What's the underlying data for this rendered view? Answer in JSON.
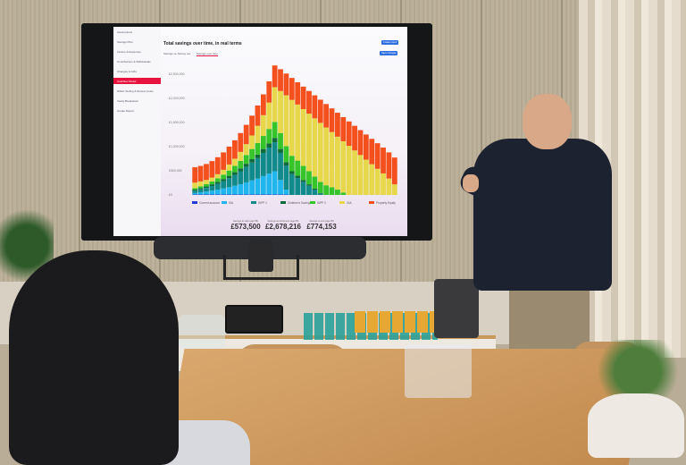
{
  "app": {
    "sidebar": {
      "items": [
        "Assumptions",
        "Savings Plan",
        "Income & Expenses",
        "Contributions & Withdrawals",
        "Changes & Gifts",
        "Cashflow Model",
        "Which Tooling & Review Costs",
        "Yearly Breakdown",
        "Create Report"
      ],
      "active_index": 5
    },
    "title": "Total savings over time, in real terms",
    "tabs": [
      "Savings vs. Money out",
      "Savings over time"
    ],
    "buttons": {
      "top": "Create report",
      "chart": "Save changes"
    },
    "stats": [
      {
        "label": "Savings at start (age 55)",
        "value": "£573,500"
      },
      {
        "label": "Savings at retirement (age 65)",
        "value": "£2,678,216"
      },
      {
        "label": "Savings at end (age 95)",
        "value": "£774,153"
      }
    ]
  },
  "colors": {
    "accent": "#e8123f",
    "button": "#2e6fe0"
  },
  "chart_data": {
    "type": "bar",
    "stacked": true,
    "title": "Total savings over time, in real terms",
    "ylim": [
      0,
      2700000
    ],
    "yticks": [
      "£0",
      "£500,000",
      "£1,000,000",
      "£1,500,000",
      "£2,000,000",
      "£2,500,000"
    ],
    "ytick_values": [
      0,
      500000,
      1000000,
      1500000,
      2000000,
      2500000
    ],
    "unit": "£ thousands",
    "legend": "bottom",
    "series": [
      {
        "name": "Current account",
        "color": "#1f3fd6",
        "values": [
          10,
          10,
          10,
          10,
          10,
          10,
          10,
          10,
          10,
          10,
          10,
          10,
          10,
          10,
          10,
          10,
          10,
          0,
          0,
          0,
          0,
          0,
          0,
          0,
          0,
          0,
          0,
          0,
          0,
          0,
          0,
          0,
          0,
          0,
          0,
          0
        ]
      },
      {
        "name": "ISA",
        "color": "#1fb6ee",
        "values": [
          30,
          45,
          60,
          80,
          100,
          125,
          150,
          180,
          210,
          250,
          290,
          330,
          380,
          430,
          480,
          300,
          100,
          0,
          0,
          0,
          0,
          0,
          0,
          0,
          0,
          0,
          0,
          0,
          0,
          0,
          0,
          0,
          0,
          0,
          0,
          0
        ]
      },
      {
        "name": "SIPP 1",
        "color": "#118a8c",
        "values": [
          50,
          60,
          75,
          95,
          120,
          150,
          185,
          225,
          270,
          320,
          370,
          420,
          480,
          540,
          600,
          560,
          500,
          430,
          350,
          270,
          190,
          110,
          30,
          0,
          0,
          0,
          0,
          0,
          0,
          0,
          0,
          0,
          0,
          0,
          0,
          0
        ]
      },
      {
        "name": "Children's Savings",
        "color": "#0f6b3a",
        "values": [
          20,
          25,
          30,
          35,
          40,
          45,
          50,
          55,
          60,
          65,
          70,
          75,
          80,
          85,
          90,
          80,
          70,
          60,
          50,
          40,
          30,
          20,
          10,
          0,
          0,
          0,
          0,
          0,
          0,
          0,
          0,
          0,
          0,
          0,
          0,
          0
        ]
      },
      {
        "name": "SIPP 2",
        "color": "#35c42a",
        "values": [
          30,
          40,
          50,
          60,
          75,
          90,
          110,
          130,
          155,
          180,
          210,
          240,
          270,
          300,
          330,
          330,
          330,
          320,
          310,
          290,
          270,
          250,
          230,
          200,
          160,
          110,
          50,
          0,
          0,
          0,
          0,
          0,
          0,
          0,
          0,
          0
        ]
      },
      {
        "name": "GIA",
        "color": "#e6d84a",
        "values": [
          114,
          100,
          85,
          80,
          85,
          100,
          125,
          150,
          185,
          225,
          280,
          355,
          430,
          545,
          718,
          870,
          1050,
          1155,
          1160,
          1175,
          1190,
          1205,
          1220,
          1195,
          1140,
          1095,
          1060,
          1015,
          920,
          825,
          730,
          635,
          540,
          445,
          340,
          220
        ]
      },
      {
        "name": "Property Equity",
        "color": "#f4501e",
        "values": [
          320,
          320,
          330,
          340,
          350,
          360,
          370,
          380,
          390,
          400,
          410,
          420,
          430,
          440,
          450,
          450,
          450,
          455,
          460,
          465,
          470,
          475,
          480,
          485,
          490,
          495,
          500,
          505,
          510,
          515,
          520,
          525,
          530,
          535,
          540,
          554
        ]
      }
    ]
  }
}
